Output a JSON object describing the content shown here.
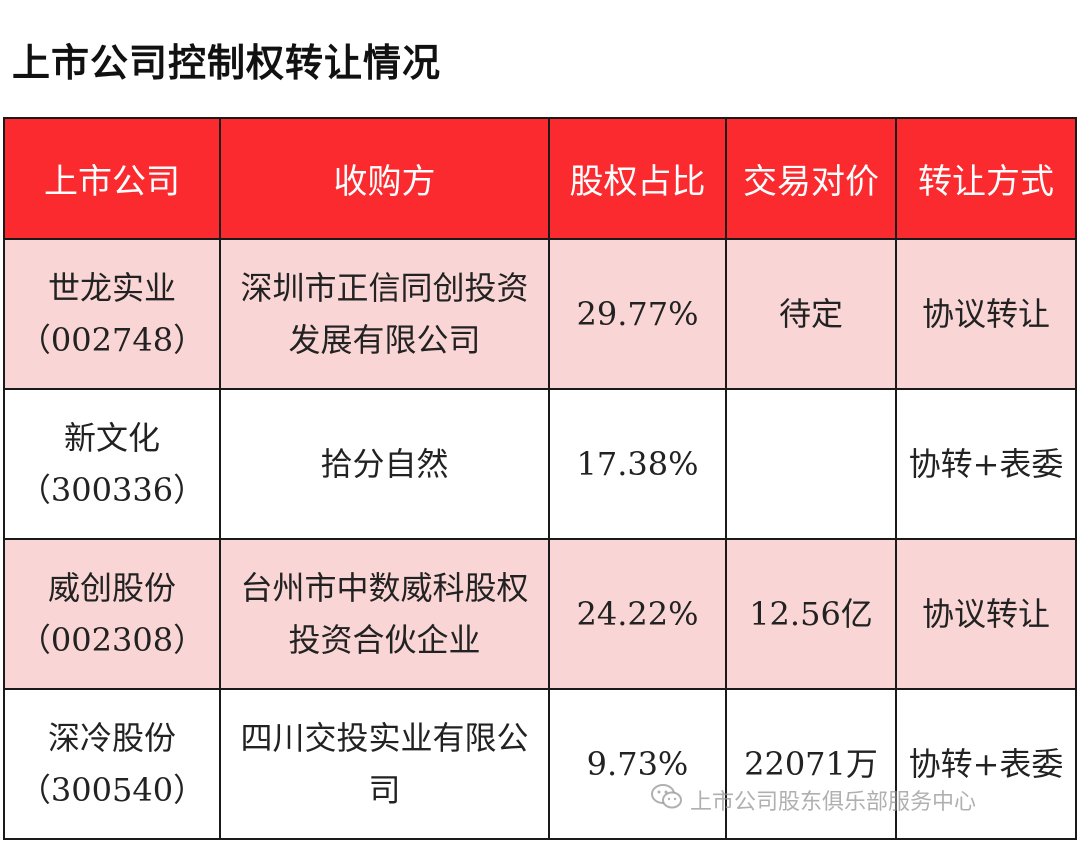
{
  "title": "上市公司控制权转让情况",
  "table": {
    "headers": [
      "上市公司",
      "收购方",
      "股权占比",
      "交易对价",
      "转让方式"
    ],
    "rows": [
      {
        "company": "世龙实业",
        "code": "（002748）",
        "acquirer": "深圳市正信同创投资发展有限公司",
        "stake": "29.77%",
        "price": "待定",
        "method": "协议转让"
      },
      {
        "company": "新文化",
        "code": "（300336）",
        "acquirer": "拾分自然",
        "stake": "17.38%",
        "price": "",
        "method": "协转+表委"
      },
      {
        "company": "威创股份",
        "code": "（002308）",
        "acquirer": "台州市中数威科股权投资合伙企业",
        "stake": "24.22%",
        "price": "12.56亿",
        "method": "协议转让"
      },
      {
        "company": "深冷股份",
        "code": "（300540）",
        "acquirer": "四川交投实业有限公司",
        "stake": "9.73%",
        "price": "22071万",
        "method": "协转+表委"
      }
    ]
  },
  "watermark": {
    "text": "上市公司股东俱乐部服务中心",
    "icon": "wechat-icon"
  }
}
